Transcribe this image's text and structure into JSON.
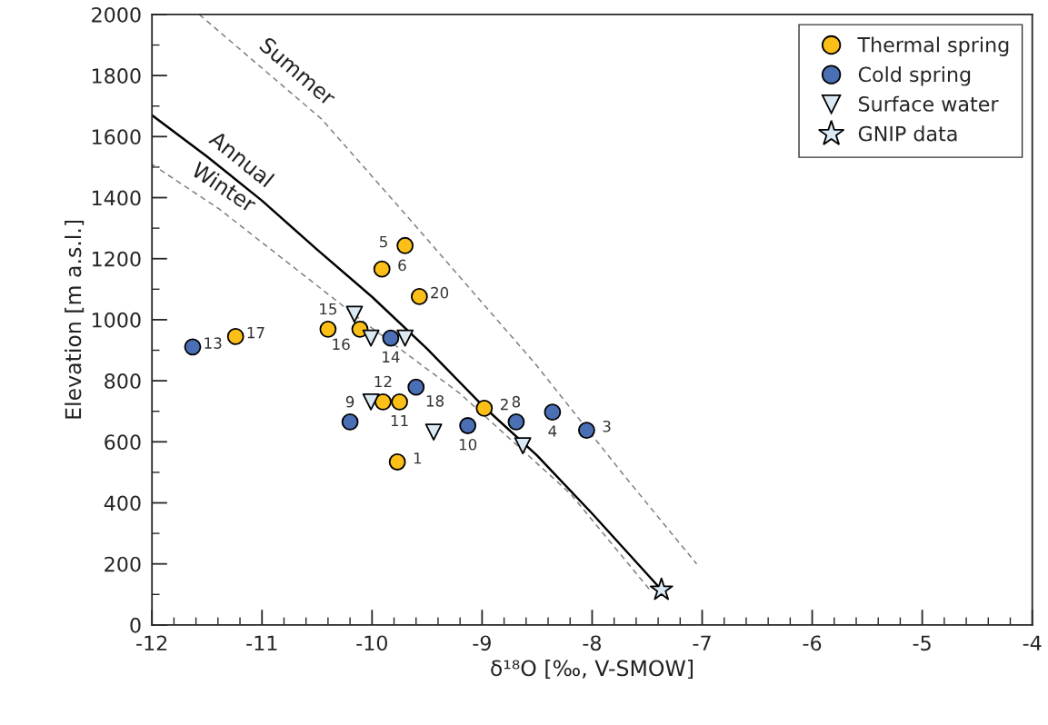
{
  "chart_data": {
    "type": "scatter",
    "xlabel": "δ¹⁸O [‰, V-SMOW]",
    "ylabel": "Elevation [m a.s.l.]",
    "xlim": [
      -12,
      -4
    ],
    "ylim": [
      0,
      2000
    ],
    "xticks": [
      -12,
      {
        "value": -11.8,
        "label": null
      },
      {
        "value": -11.6,
        "label": null
      },
      {
        "value": -11.4,
        "label": null
      },
      {
        "value": -11.2,
        "label": null
      },
      -11,
      {
        "value": -10.8,
        "label": null
      },
      {
        "value": -10.6,
        "label": null
      },
      {
        "value": -10.4,
        "label": null
      },
      {
        "value": -10.2,
        "label": null
      },
      -10,
      {
        "value": -9.8,
        "label": null
      },
      {
        "value": -9.6,
        "label": null
      },
      {
        "value": -9.4,
        "label": null
      },
      {
        "value": -9.2,
        "label": null
      },
      -9,
      {
        "value": -8.8,
        "label": null
      },
      {
        "value": -8.6,
        "label": null
      },
      {
        "value": -8.4,
        "label": null
      },
      {
        "value": -8.2,
        "label": null
      },
      -8,
      {
        "value": -7.8,
        "label": null
      },
      {
        "value": -7.6,
        "label": null
      },
      {
        "value": -7.4,
        "label": null
      },
      {
        "value": -7.2,
        "label": null
      },
      -7,
      {
        "value": -6.8,
        "label": null
      },
      {
        "value": -6.6,
        "label": null
      },
      {
        "value": -6.4,
        "label": null
      },
      {
        "value": -6.2,
        "label": null
      },
      -6,
      {
        "value": -5.8,
        "label": null
      },
      {
        "value": -5.6,
        "label": null
      },
      {
        "value": -5.4,
        "label": null
      },
      {
        "value": -5.2,
        "label": null
      },
      -5,
      {
        "value": -4.8,
        "label": null
      },
      {
        "value": -4.6,
        "label": null
      },
      {
        "value": -4.4,
        "label": null
      },
      {
        "value": -4.2,
        "label": null
      },
      -4
    ],
    "yticks": [
      0,
      {
        "value": 100,
        "label": null
      },
      200,
      {
        "value": 300,
        "label": null
      },
      400,
      {
        "value": 500,
        "label": null
      },
      600,
      {
        "value": 700,
        "label": null
      },
      800,
      {
        "value": 900,
        "label": null
      },
      1000,
      {
        "value": 1100,
        "label": null
      },
      1200,
      {
        "value": 1300,
        "label": null
      },
      1400,
      {
        "value": 1500,
        "label": null
      },
      1600,
      {
        "value": 1700,
        "label": null
      },
      1800,
      {
        "value": 1900,
        "label": null
      },
      2000
    ],
    "grid": false,
    "legend": "top right",
    "series": [
      {
        "type": "line",
        "color": "#000000",
        "line_style": "solid",
        "marker": "none",
        "x": [
          -12,
          -11.5,
          -11,
          -10.5,
          -10,
          -9.5,
          -9,
          -8.5,
          -8,
          -7.37
        ],
        "values": [
          1670,
          1535,
          1390,
          1230,
          1075,
          905,
          720,
          555,
          365,
          115
        ]
      },
      {
        "type": "line",
        "color": "#808080",
        "line_style": "dashed",
        "marker": "none",
        "x": [
          -12,
          -11.39,
          -10.11,
          -9.2,
          -8.2,
          -7.46
        ],
        "values": [
          1509,
          1363,
          1002,
          758,
          431,
          108
        ]
      },
      {
        "type": "line",
        "color": "#808080",
        "line_style": "dashed",
        "marker": "none",
        "x": [
          -11.57,
          -10.46,
          -9.72,
          -8.52,
          -7.69,
          -7.05
        ],
        "values": [
          2000,
          1658,
          1355,
          857,
          481,
          200
        ]
      },
      {
        "name": "Thermal spring",
        "color": "#fbbf17",
        "marker": "circle",
        "x": [
          -9.7,
          -9.91,
          -9.57,
          -11.24,
          -10.4,
          -10.11,
          -9.9,
          -9.75,
          -9.77,
          -8.98
        ],
        "values": [
          1243,
          1166,
          1076,
          945,
          969,
          969,
          731,
          731,
          534,
          710
        ]
      },
      {
        "name": "Cold spring",
        "color": "#4a6fb5",
        "marker": "circle",
        "x": [
          -11.63,
          -9.83,
          -9.6,
          -10.2,
          -9.13,
          -8.69,
          -8.36,
          -8.05
        ],
        "values": [
          911,
          940,
          779,
          665,
          653,
          665,
          697,
          638
        ]
      },
      {
        "name": "Surface water",
        "color": "#dbe9f5",
        "marker": "triangle",
        "x": [
          -10.16,
          -10.01,
          -9.7,
          -10.01,
          -9.44,
          -8.63
        ],
        "values": [
          1018,
          940,
          940,
          731,
          632,
          587
        ]
      },
      {
        "name": "GNIP data",
        "color": "#dbe9f5",
        "marker": "star",
        "x": [
          -7.37
        ],
        "values": [
          115
        ]
      }
    ],
    "annotations": [
      {
        "text": "Summer",
        "x": -10.8,
        "y": 1763
      },
      {
        "text": "Annual",
        "x": -11.3,
        "y": 1473
      },
      {
        "text": "Winter",
        "x": -11.45,
        "y": 1378
      },
      {
        "text": "5",
        "x": -9.7,
        "y": 1243
      },
      {
        "text": "6",
        "x": -9.91,
        "y": 1166
      },
      {
        "text": "20",
        "x": -9.57,
        "y": 1076
      },
      {
        "text": "17",
        "x": -11.24,
        "y": 945
      },
      {
        "text": "13",
        "x": -11.63,
        "y": 911
      },
      {
        "text": "15",
        "x": -10.4,
        "y": 969
      },
      {
        "text": "16",
        "x": -10.11,
        "y": 969
      },
      {
        "text": "14",
        "x": -9.83,
        "y": 940
      },
      {
        "text": "18",
        "x": -9.6,
        "y": 779
      },
      {
        "text": "12",
        "x": -9.9,
        "y": 731
      },
      {
        "text": "11",
        "x": -9.75,
        "y": 731
      },
      {
        "text": "9",
        "x": -10.2,
        "y": 665
      },
      {
        "text": "10",
        "x": -9.13,
        "y": 653
      },
      {
        "text": "8",
        "x": -8.69,
        "y": 665
      },
      {
        "text": "4",
        "x": -8.36,
        "y": 697
      },
      {
        "text": "3",
        "x": -8.05,
        "y": 638
      },
      {
        "text": "1",
        "x": -9.77,
        "y": 534
      },
      {
        "text": "2",
        "x": -8.98,
        "y": 710
      }
    ]
  }
}
